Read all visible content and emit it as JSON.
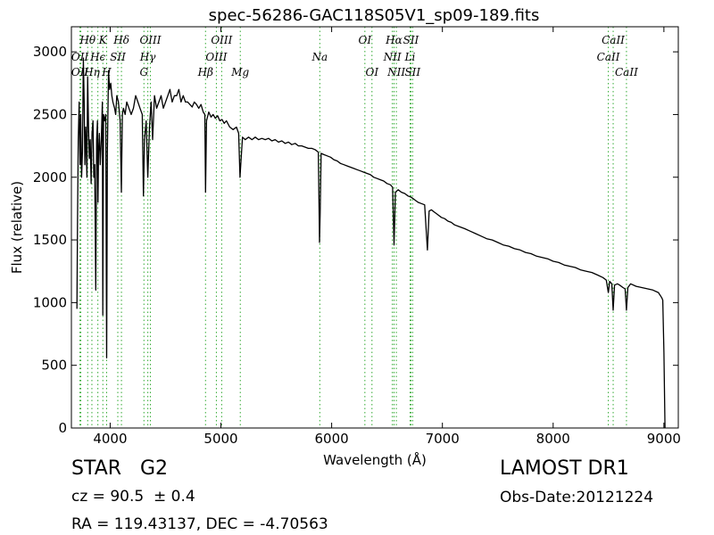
{
  "chart_data": {
    "type": "line",
    "title": "spec-56286-GAC118S05V1_sp09-189.fits",
    "xlabel": "Wavelength (Å)",
    "ylabel": "Flux (relative)",
    "xlim": [
      3650,
      9130
    ],
    "ylim": [
      0,
      3200
    ],
    "xticks": [
      "4000",
      "5000",
      "6000",
      "7000",
      "8000",
      "9000"
    ],
    "yticks": [
      "0",
      "500",
      "1000",
      "1500",
      "2000",
      "2500",
      "3000"
    ],
    "grid": false,
    "series": [
      {
        "color": "#000000",
        "points": [
          [
            3700,
            950
          ],
          [
            3705,
            1600
          ],
          [
            3712,
            2300
          ],
          [
            3720,
            2600
          ],
          [
            3728,
            2100
          ],
          [
            3735,
            2500
          ],
          [
            3742,
            2000
          ],
          [
            3750,
            2200
          ],
          [
            3758,
            2950
          ],
          [
            3765,
            2600
          ],
          [
            3772,
            2100
          ],
          [
            3780,
            2400
          ],
          [
            3790,
            2000
          ],
          [
            3797,
            2800
          ],
          [
            3805,
            2400
          ],
          [
            3812,
            2150
          ],
          [
            3820,
            2300
          ],
          [
            3828,
            1950
          ],
          [
            3836,
            2350
          ],
          [
            3845,
            2450
          ],
          [
            3852,
            2000
          ],
          [
            3860,
            2100
          ],
          [
            3870,
            1100
          ],
          [
            3878,
            2300
          ],
          [
            3885,
            2450
          ],
          [
            3890,
            1800
          ],
          [
            3895,
            2200
          ],
          [
            3902,
            2350
          ],
          [
            3910,
            2100
          ],
          [
            3920,
            2300
          ],
          [
            3930,
            2600
          ],
          [
            3934,
            900
          ],
          [
            3940,
            2500
          ],
          [
            3950,
            2450
          ],
          [
            3960,
            2500
          ],
          [
            3968,
            560
          ],
          [
            3975,
            2200
          ],
          [
            3985,
            2850
          ],
          [
            3995,
            2700
          ],
          [
            4005,
            2750
          ],
          [
            4015,
            2650
          ],
          [
            4025,
            2600
          ],
          [
            4040,
            2550
          ],
          [
            4050,
            2500
          ],
          [
            4060,
            2650
          ],
          [
            4075,
            2600
          ],
          [
            4090,
            2450
          ],
          [
            4101,
            1880
          ],
          [
            4110,
            2500
          ],
          [
            4120,
            2550
          ],
          [
            4135,
            2500
          ],
          [
            4150,
            2600
          ],
          [
            4170,
            2550
          ],
          [
            4190,
            2500
          ],
          [
            4210,
            2550
          ],
          [
            4230,
            2650
          ],
          [
            4250,
            2600
          ],
          [
            4270,
            2550
          ],
          [
            4290,
            2500
          ],
          [
            4300,
            1850
          ],
          [
            4310,
            2300
          ],
          [
            4325,
            2450
          ],
          [
            4340,
            2000
          ],
          [
            4355,
            2400
          ],
          [
            4370,
            2600
          ],
          [
            4383,
            2300
          ],
          [
            4400,
            2650
          ],
          [
            4420,
            2550
          ],
          [
            4440,
            2600
          ],
          [
            4460,
            2650
          ],
          [
            4480,
            2550
          ],
          [
            4500,
            2600
          ],
          [
            4520,
            2650
          ],
          [
            4540,
            2700
          ],
          [
            4560,
            2600
          ],
          [
            4580,
            2650
          ],
          [
            4600,
            2650
          ],
          [
            4620,
            2700
          ],
          [
            4640,
            2600
          ],
          [
            4660,
            2650
          ],
          [
            4680,
            2600
          ],
          [
            4700,
            2600
          ],
          [
            4720,
            2580
          ],
          [
            4740,
            2560
          ],
          [
            4760,
            2600
          ],
          [
            4780,
            2580
          ],
          [
            4800,
            2550
          ],
          [
            4820,
            2580
          ],
          [
            4840,
            2520
          ],
          [
            4855,
            2500
          ],
          [
            4861,
            1880
          ],
          [
            4870,
            2450
          ],
          [
            4890,
            2520
          ],
          [
            4910,
            2480
          ],
          [
            4930,
            2500
          ],
          [
            4950,
            2470
          ],
          [
            4970,
            2490
          ],
          [
            4990,
            2450
          ],
          [
            5010,
            2460
          ],
          [
            5030,
            2430
          ],
          [
            5050,
            2450
          ],
          [
            5080,
            2400
          ],
          [
            5110,
            2380
          ],
          [
            5140,
            2400
          ],
          [
            5160,
            2350
          ],
          [
            5172,
            2000
          ],
          [
            5183,
            2150
          ],
          [
            5195,
            2320
          ],
          [
            5220,
            2300
          ],
          [
            5250,
            2320
          ],
          [
            5280,
            2300
          ],
          [
            5310,
            2320
          ],
          [
            5340,
            2300
          ],
          [
            5370,
            2310
          ],
          [
            5400,
            2300
          ],
          [
            5430,
            2310
          ],
          [
            5460,
            2290
          ],
          [
            5490,
            2300
          ],
          [
            5520,
            2280
          ],
          [
            5550,
            2290
          ],
          [
            5580,
            2270
          ],
          [
            5610,
            2280
          ],
          [
            5640,
            2260
          ],
          [
            5670,
            2270
          ],
          [
            5700,
            2250
          ],
          [
            5730,
            2250
          ],
          [
            5760,
            2240
          ],
          [
            5790,
            2230
          ],
          [
            5820,
            2230
          ],
          [
            5850,
            2220
          ],
          [
            5880,
            2200
          ],
          [
            5890,
            1480
          ],
          [
            5896,
            1700
          ],
          [
            5905,
            2190
          ],
          [
            5930,
            2180
          ],
          [
            5960,
            2170
          ],
          [
            5990,
            2160
          ],
          [
            6020,
            2140
          ],
          [
            6050,
            2130
          ],
          [
            6080,
            2110
          ],
          [
            6110,
            2100
          ],
          [
            6140,
            2090
          ],
          [
            6170,
            2080
          ],
          [
            6200,
            2070
          ],
          [
            6230,
            2060
          ],
          [
            6260,
            2050
          ],
          [
            6290,
            2040
          ],
          [
            6320,
            2030
          ],
          [
            6350,
            2020
          ],
          [
            6380,
            2000
          ],
          [
            6410,
            1990
          ],
          [
            6440,
            1980
          ],
          [
            6470,
            1970
          ],
          [
            6500,
            1950
          ],
          [
            6530,
            1940
          ],
          [
            6550,
            1920
          ],
          [
            6563,
            1460
          ],
          [
            6575,
            1880
          ],
          [
            6600,
            1900
          ],
          [
            6630,
            1880
          ],
          [
            6660,
            1870
          ],
          [
            6690,
            1850
          ],
          [
            6720,
            1840
          ],
          [
            6750,
            1820
          ],
          [
            6780,
            1800
          ],
          [
            6810,
            1790
          ],
          [
            6840,
            1780
          ],
          [
            6865,
            1420
          ],
          [
            6880,
            1730
          ],
          [
            6900,
            1740
          ],
          [
            6930,
            1720
          ],
          [
            6960,
            1700
          ],
          [
            6990,
            1680
          ],
          [
            7020,
            1670
          ],
          [
            7050,
            1650
          ],
          [
            7080,
            1640
          ],
          [
            7110,
            1620
          ],
          [
            7140,
            1610
          ],
          [
            7170,
            1600
          ],
          [
            7200,
            1590
          ],
          [
            7250,
            1570
          ],
          [
            7300,
            1550
          ],
          [
            7350,
            1530
          ],
          [
            7400,
            1510
          ],
          [
            7450,
            1500
          ],
          [
            7500,
            1480
          ],
          [
            7550,
            1460
          ],
          [
            7600,
            1450
          ],
          [
            7650,
            1430
          ],
          [
            7700,
            1420
          ],
          [
            7750,
            1400
          ],
          [
            7800,
            1390
          ],
          [
            7850,
            1370
          ],
          [
            7900,
            1360
          ],
          [
            7950,
            1350
          ],
          [
            8000,
            1330
          ],
          [
            8050,
            1320
          ],
          [
            8100,
            1300
          ],
          [
            8150,
            1290
          ],
          [
            8200,
            1280
          ],
          [
            8250,
            1260
          ],
          [
            8300,
            1250
          ],
          [
            8350,
            1240
          ],
          [
            8400,
            1220
          ],
          [
            8450,
            1200
          ],
          [
            8480,
            1180
          ],
          [
            8498,
            1080
          ],
          [
            8510,
            1170
          ],
          [
            8530,
            1150
          ],
          [
            8542,
            940
          ],
          [
            8555,
            1140
          ],
          [
            8580,
            1150
          ],
          [
            8600,
            1140
          ],
          [
            8630,
            1120
          ],
          [
            8650,
            1110
          ],
          [
            8662,
            940
          ],
          [
            8675,
            1120
          ],
          [
            8700,
            1150
          ],
          [
            8750,
            1130
          ],
          [
            8800,
            1120
          ],
          [
            8850,
            1110
          ],
          [
            8900,
            1100
          ],
          [
            8950,
            1080
          ],
          [
            8980,
            1040
          ],
          [
            8990,
            1020
          ],
          [
            9000,
            600
          ],
          [
            9010,
            0
          ]
        ]
      }
    ]
  },
  "line_markers": [
    {
      "label": "Hθ",
      "x": 3797,
      "row": 0
    },
    {
      "label": "K",
      "x": 3934,
      "row": 0
    },
    {
      "label": "Hδ",
      "x": 4102,
      "row": 0
    },
    {
      "label": "OIII",
      "x": 4363,
      "row": 0
    },
    {
      "label": "OIII",
      "x": 5007,
      "row": 0
    },
    {
      "label": "OI",
      "x": 6300,
      "row": 0
    },
    {
      "label": "Hα",
      "x": 6563,
      "row": 0
    },
    {
      "label": "SII",
      "x": 6716,
      "row": 0
    },
    {
      "label": "CaII",
      "x": 8542,
      "row": 0
    },
    {
      "label": "OII",
      "x": 3727,
      "row": 1
    },
    {
      "label": "Hϵ",
      "x": 3889,
      "row": 1
    },
    {
      "label": "SII",
      "x": 4069,
      "row": 1
    },
    {
      "label": "Hγ",
      "x": 4340,
      "row": 1
    },
    {
      "label": "OIII",
      "x": 4959,
      "row": 1
    },
    {
      "label": "Na",
      "x": 5893,
      "row": 1
    },
    {
      "label": "NII",
      "x": 6548,
      "row": 1
    },
    {
      "label": "Li",
      "x": 6708,
      "row": 1
    },
    {
      "label": "CaII",
      "x": 8498,
      "row": 1
    },
    {
      "label": "OII",
      "x": 3727,
      "row": 2
    },
    {
      "label": "Hη",
      "x": 3835,
      "row": 2
    },
    {
      "label": "H",
      "x": 3968,
      "row": 2
    },
    {
      "label": "G",
      "x": 4305,
      "row": 2
    },
    {
      "label": "Hβ",
      "x": 4861,
      "row": 2
    },
    {
      "label": "Mg",
      "x": 5175,
      "row": 2
    },
    {
      "label": "OI",
      "x": 6364,
      "row": 2
    },
    {
      "label": "NII",
      "x": 6584,
      "row": 2
    },
    {
      "label": "SII",
      "x": 6731,
      "row": 2
    },
    {
      "label": "CaII",
      "x": 8662,
      "row": 2
    }
  ],
  "marker_lines": [
    3727,
    3735,
    3797,
    3835,
    3889,
    3934,
    3968,
    4069,
    4102,
    4305,
    4340,
    4363,
    4861,
    4959,
    5007,
    5175,
    5893,
    6300,
    6364,
    6548,
    6563,
    6584,
    6708,
    6716,
    6731,
    8498,
    8542,
    8662
  ],
  "marker_color": "#33aa33",
  "info": {
    "object_class": "STAR",
    "subclass": "G2",
    "survey": "LAMOST DR1",
    "redshift": "cz = 90.5  ± 0.4",
    "obs_date": "Obs-Date:20121224",
    "coords": "RA = 119.43137, DEC = -4.70563"
  }
}
